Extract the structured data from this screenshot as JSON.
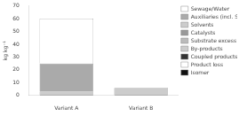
{
  "chart_data": {
    "type": "bar",
    "stacked": true,
    "categories": [
      "Variant A",
      "Variant B"
    ],
    "ylabel": "kg kg⁻¹",
    "series": [
      {
        "name": "Sewage/Water",
        "color": "#ffffff",
        "values": [
          35.0,
          0.0
        ]
      },
      {
        "name": "Auxiliaries (incl. Solv.)",
        "color": "#aaaaaa",
        "values": [
          22.0,
          0.0
        ]
      },
      {
        "name": "Solvents",
        "color": "#cccccc",
        "values": [
          0.0,
          0.0
        ]
      },
      {
        "name": "Catalysts",
        "color": "#999999",
        "values": [
          0.0,
          0.0
        ]
      },
      {
        "name": "Substrate excess",
        "color": "#bbbbbb",
        "values": [
          0.0,
          0.0
        ]
      },
      {
        "name": "By-products",
        "color": "#cccccc",
        "values": [
          2.5,
          5.5
        ]
      },
      {
        "name": "Coupled products",
        "color": "#333333",
        "values": [
          0.0,
          0.0
        ]
      },
      {
        "name": "Product loss",
        "color": "#ffffff",
        "values": [
          0.0,
          0.0
        ]
      },
      {
        "name": "Isomer",
        "color": "#111111",
        "values": [
          0.5,
          0.5
        ]
      }
    ],
    "ylim": [
      0,
      70
    ],
    "yticks": [
      0,
      10,
      20,
      30,
      40,
      50,
      60,
      70
    ],
    "grid": false,
    "legend": "right"
  }
}
